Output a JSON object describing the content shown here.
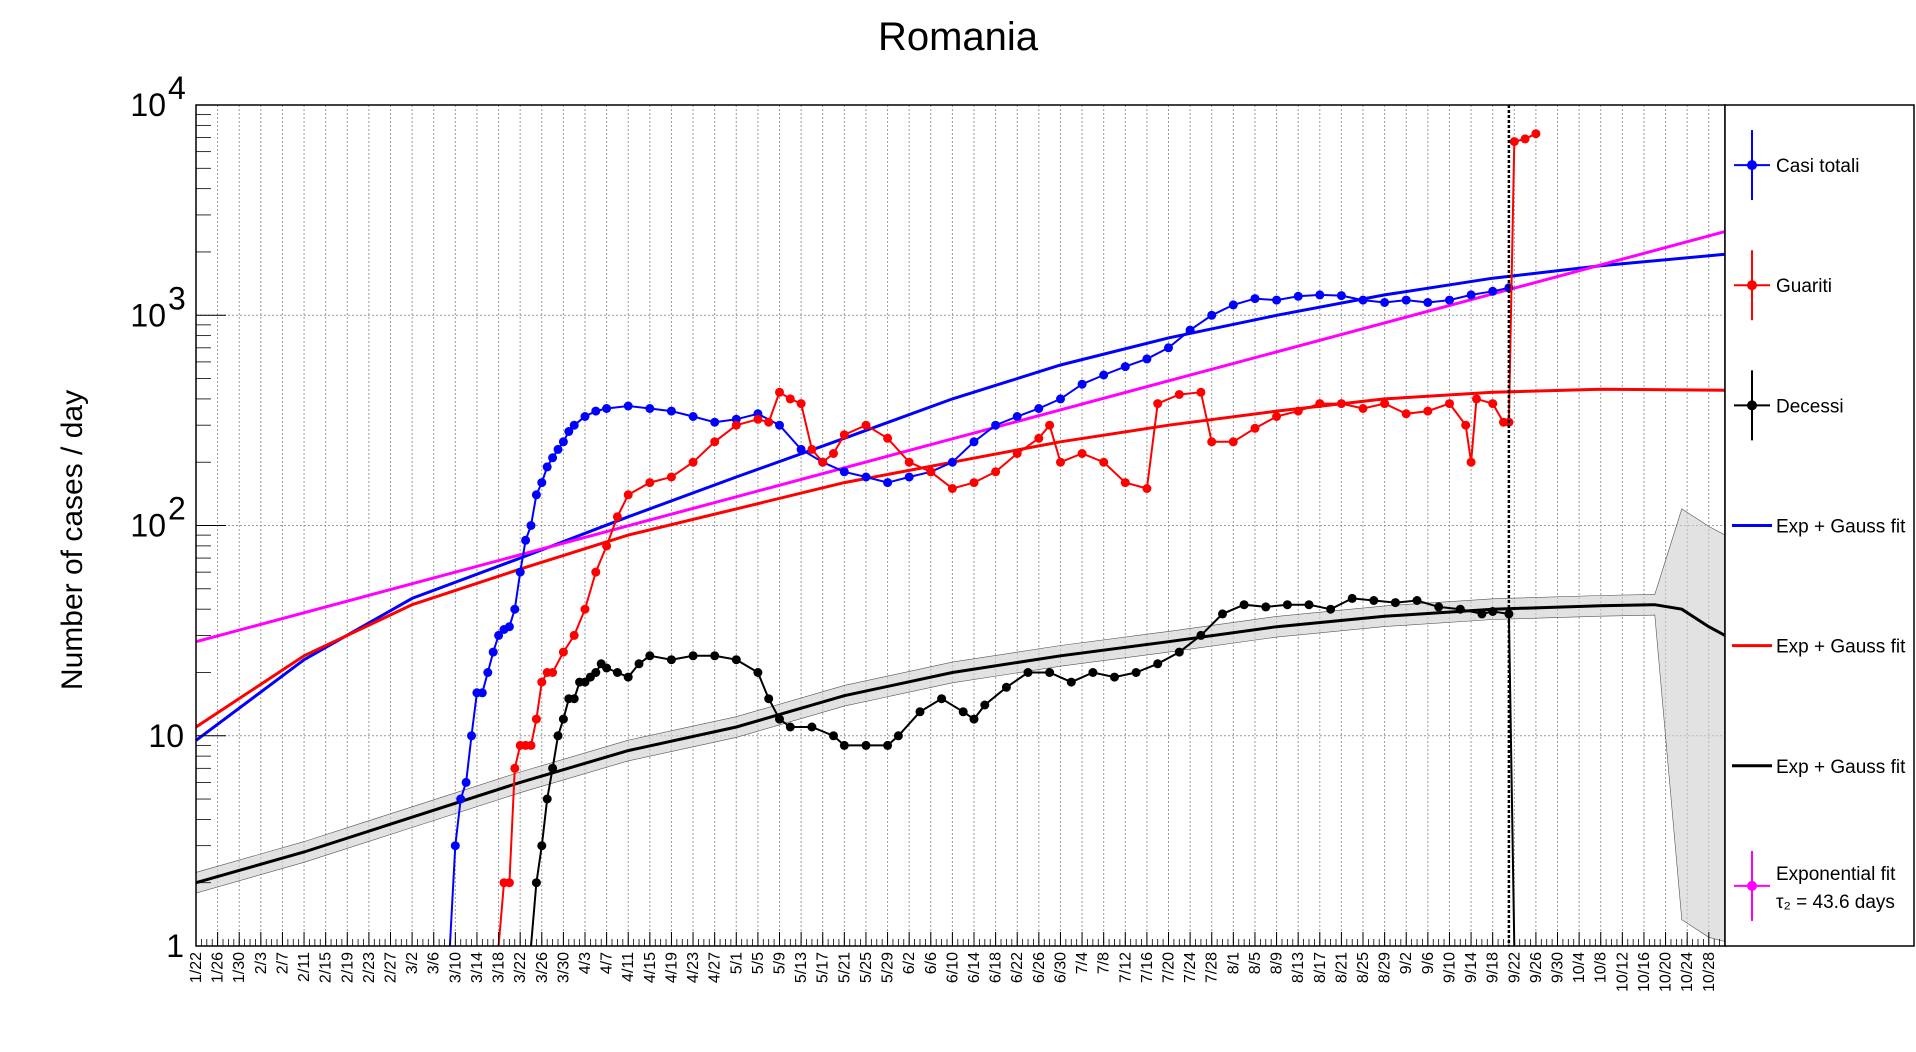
{
  "chart_data": {
    "type": "line",
    "title": "Romania",
    "xlabel": "",
    "ylabel": "Number of cases / day",
    "yscale": "log",
    "ylim": [
      1,
      10000
    ],
    "y_ticks": [
      {
        "value": 1,
        "label": "1"
      },
      {
        "value": 10,
        "label": "10"
      },
      {
        "value": 100,
        "label": "10",
        "exp": "2"
      },
      {
        "value": 1000,
        "label": "10",
        "exp": "3"
      },
      {
        "value": 10000,
        "label": "10",
        "exp": "4"
      }
    ],
    "x_tick_labels": [
      "1/22",
      "1/26",
      "1/30",
      "2/3",
      "2/7",
      "2/11",
      "2/15",
      "2/19",
      "2/23",
      "2/27",
      "3/2",
      "3/6",
      "3/10",
      "3/14",
      "3/18",
      "3/22",
      "3/26",
      "3/30",
      "4/3",
      "4/7",
      "4/11",
      "4/15",
      "4/19",
      "4/23",
      "4/27",
      "5/1",
      "5/5",
      "5/9",
      "5/13",
      "5/17",
      "5/21",
      "5/25",
      "5/29",
      "6/2",
      "6/6",
      "6/10",
      "6/14",
      "6/18",
      "6/22",
      "6/26",
      "6/30",
      "7/4",
      "7/8",
      "7/12",
      "7/16",
      "7/20",
      "7/24",
      "7/28",
      "8/1",
      "8/5",
      "8/9",
      "8/13",
      "8/17",
      "8/21",
      "8/25",
      "8/29",
      "9/2",
      "9/6",
      "9/10",
      "9/14",
      "9/18",
      "9/22",
      "9/26",
      "9/30",
      "10/4",
      "10/8",
      "10/12",
      "10/16",
      "10/20",
      "10/24",
      "10/28"
    ],
    "xlim_days": [
      0,
      283
    ],
    "grid": true,
    "current_day_marker": 243,
    "legend_position": "right",
    "legend": [
      {
        "label": "Casi totali",
        "color": "#0000ff",
        "style": "marker"
      },
      {
        "label": "Guariti",
        "color": "#ff0000",
        "style": "marker"
      },
      {
        "label": "Decessi",
        "color": "#000000",
        "style": "marker"
      },
      {
        "label": "Exp + Gauss fit",
        "color": "#0000ff",
        "style": "line"
      },
      {
        "label": "Exp + Gauss fit",
        "color": "#ff0000",
        "style": "line"
      },
      {
        "label": "Exp + Gauss fit",
        "color": "#000000",
        "style": "line"
      },
      {
        "label": "Exponential fit",
        "label2": "τ₂ = 43.6 days",
        "color": "#ff00ff",
        "style": "marker"
      }
    ],
    "series": [
      {
        "name": "Casi totali",
        "color": "#0000ff",
        "kind": "data",
        "points": [
          [
            47,
            1
          ],
          [
            48,
            3
          ],
          [
            49,
            5
          ],
          [
            50,
            6
          ],
          [
            51,
            10
          ],
          [
            52,
            16
          ],
          [
            53,
            16
          ],
          [
            54,
            20
          ],
          [
            55,
            25
          ],
          [
            56,
            30
          ],
          [
            57,
            32
          ],
          [
            58,
            33
          ],
          [
            59,
            40
          ],
          [
            60,
            60
          ],
          [
            61,
            85
          ],
          [
            62,
            100
          ],
          [
            63,
            140
          ],
          [
            64,
            160
          ],
          [
            65,
            190
          ],
          [
            66,
            210
          ],
          [
            67,
            230
          ],
          [
            68,
            250
          ],
          [
            69,
            280
          ],
          [
            70,
            300
          ],
          [
            72,
            330
          ],
          [
            74,
            350
          ],
          [
            76,
            360
          ],
          [
            80,
            370
          ],
          [
            84,
            360
          ],
          [
            88,
            350
          ],
          [
            92,
            330
          ],
          [
            96,
            310
          ],
          [
            100,
            320
          ],
          [
            104,
            340
          ],
          [
            108,
            300
          ],
          [
            112,
            230
          ],
          [
            116,
            200
          ],
          [
            120,
            180
          ],
          [
            124,
            170
          ],
          [
            128,
            160
          ],
          [
            132,
            170
          ],
          [
            136,
            180
          ],
          [
            140,
            200
          ],
          [
            144,
            250
          ],
          [
            148,
            300
          ],
          [
            152,
            330
          ],
          [
            156,
            360
          ],
          [
            160,
            400
          ],
          [
            164,
            470
          ],
          [
            168,
            520
          ],
          [
            172,
            570
          ],
          [
            176,
            620
          ],
          [
            180,
            700
          ],
          [
            184,
            850
          ],
          [
            188,
            1000
          ],
          [
            192,
            1120
          ],
          [
            196,
            1200
          ],
          [
            200,
            1180
          ],
          [
            204,
            1230
          ],
          [
            208,
            1250
          ],
          [
            212,
            1240
          ],
          [
            216,
            1180
          ],
          [
            220,
            1150
          ],
          [
            224,
            1180
          ],
          [
            228,
            1150
          ],
          [
            232,
            1180
          ],
          [
            236,
            1250
          ],
          [
            240,
            1300
          ],
          [
            243,
            1350
          ]
        ]
      },
      {
        "name": "Guariti",
        "color": "#ff0000",
        "kind": "data",
        "points": [
          [
            56,
            1
          ],
          [
            57,
            2
          ],
          [
            58,
            2
          ],
          [
            59,
            7
          ],
          [
            60,
            9
          ],
          [
            61,
            9
          ],
          [
            62,
            9
          ],
          [
            63,
            12
          ],
          [
            64,
            18
          ],
          [
            65,
            20
          ],
          [
            66,
            20
          ],
          [
            68,
            25
          ],
          [
            70,
            30
          ],
          [
            72,
            40
          ],
          [
            74,
            60
          ],
          [
            76,
            80
          ],
          [
            78,
            110
          ],
          [
            80,
            140
          ],
          [
            84,
            160
          ],
          [
            88,
            170
          ],
          [
            92,
            200
          ],
          [
            96,
            250
          ],
          [
            100,
            300
          ],
          [
            104,
            320
          ],
          [
            106,
            310
          ],
          [
            108,
            430
          ],
          [
            110,
            400
          ],
          [
            112,
            380
          ],
          [
            114,
            230
          ],
          [
            116,
            200
          ],
          [
            118,
            220
          ],
          [
            120,
            270
          ],
          [
            124,
            300
          ],
          [
            128,
            260
          ],
          [
            132,
            200
          ],
          [
            136,
            180
          ],
          [
            140,
            150
          ],
          [
            144,
            160
          ],
          [
            148,
            180
          ],
          [
            152,
            220
          ],
          [
            156,
            260
          ],
          [
            158,
            300
          ],
          [
            160,
            200
          ],
          [
            164,
            220
          ],
          [
            168,
            200
          ],
          [
            172,
            160
          ],
          [
            176,
            150
          ],
          [
            178,
            380
          ],
          [
            182,
            420
          ],
          [
            186,
            430
          ],
          [
            188,
            250
          ],
          [
            192,
            250
          ],
          [
            196,
            290
          ],
          [
            200,
            330
          ],
          [
            204,
            350
          ],
          [
            208,
            380
          ],
          [
            212,
            380
          ],
          [
            216,
            360
          ],
          [
            220,
            380
          ],
          [
            224,
            340
          ],
          [
            228,
            350
          ],
          [
            232,
            380
          ],
          [
            235,
            300
          ],
          [
            236,
            200
          ],
          [
            237,
            400
          ],
          [
            240,
            380
          ],
          [
            242,
            310
          ],
          [
            243,
            310
          ],
          [
            244,
            6700
          ],
          [
            246,
            6900
          ],
          [
            248,
            7300
          ]
        ]
      },
      {
        "name": "Decessi",
        "color": "#000000",
        "kind": "data",
        "points": [
          [
            62,
            1
          ],
          [
            63,
            2
          ],
          [
            64,
            3
          ],
          [
            65,
            5
          ],
          [
            66,
            7
          ],
          [
            67,
            10
          ],
          [
            68,
            12
          ],
          [
            69,
            15
          ],
          [
            70,
            15
          ],
          [
            71,
            18
          ],
          [
            72,
            18
          ],
          [
            73,
            19
          ],
          [
            74,
            20
          ],
          [
            75,
            22
          ],
          [
            76,
            21
          ],
          [
            78,
            20
          ],
          [
            80,
            19
          ],
          [
            82,
            22
          ],
          [
            84,
            24
          ],
          [
            88,
            23
          ],
          [
            92,
            24
          ],
          [
            96,
            24
          ],
          [
            100,
            23
          ],
          [
            104,
            20
          ],
          [
            106,
            15
          ],
          [
            108,
            12
          ],
          [
            110,
            11
          ],
          [
            114,
            11
          ],
          [
            118,
            10
          ],
          [
            120,
            9
          ],
          [
            124,
            9
          ],
          [
            128,
            9
          ],
          [
            130,
            10
          ],
          [
            134,
            13
          ],
          [
            138,
            15
          ],
          [
            142,
            13
          ],
          [
            144,
            12
          ],
          [
            146,
            14
          ],
          [
            150,
            17
          ],
          [
            154,
            20
          ],
          [
            158,
            20
          ],
          [
            162,
            18
          ],
          [
            166,
            20
          ],
          [
            170,
            19
          ],
          [
            174,
            20
          ],
          [
            178,
            22
          ],
          [
            182,
            25
          ],
          [
            186,
            30
          ],
          [
            190,
            38
          ],
          [
            194,
            42
          ],
          [
            198,
            41
          ],
          [
            202,
            42
          ],
          [
            206,
            42
          ],
          [
            210,
            40
          ],
          [
            214,
            45
          ],
          [
            218,
            44
          ],
          [
            222,
            43
          ],
          [
            226,
            44
          ],
          [
            230,
            41
          ],
          [
            234,
            40
          ],
          [
            238,
            38
          ],
          [
            240,
            39
          ],
          [
            243,
            38
          ],
          [
            244,
            1
          ]
        ]
      },
      {
        "name": "Exp + Gauss fit",
        "color": "#0000ff",
        "kind": "fit",
        "points": [
          [
            0,
            9.5
          ],
          [
            20,
            23
          ],
          [
            40,
            45
          ],
          [
            60,
            70
          ],
          [
            80,
            110
          ],
          [
            100,
            170
          ],
          [
            120,
            260
          ],
          [
            140,
            400
          ],
          [
            160,
            580
          ],
          [
            180,
            780
          ],
          [
            200,
            1000
          ],
          [
            220,
            1250
          ],
          [
            240,
            1500
          ],
          [
            260,
            1720
          ],
          [
            283,
            1950
          ]
        ]
      },
      {
        "name": "Exp + Gauss fit",
        "color": "#ff0000",
        "kind": "fit",
        "points": [
          [
            0,
            11
          ],
          [
            20,
            24
          ],
          [
            40,
            42
          ],
          [
            60,
            62
          ],
          [
            80,
            90
          ],
          [
            100,
            120
          ],
          [
            120,
            160
          ],
          [
            140,
            200
          ],
          [
            160,
            250
          ],
          [
            180,
            300
          ],
          [
            200,
            350
          ],
          [
            220,
            400
          ],
          [
            240,
            430
          ],
          [
            260,
            445
          ],
          [
            283,
            440
          ]
        ]
      },
      {
        "name": "Exp + Gauss fit",
        "color": "#000000",
        "kind": "fit",
        "points": [
          [
            0,
            2
          ],
          [
            20,
            2.8
          ],
          [
            40,
            4.1
          ],
          [
            60,
            6
          ],
          [
            80,
            8.5
          ],
          [
            100,
            11
          ],
          [
            120,
            15.5
          ],
          [
            140,
            20
          ],
          [
            160,
            24
          ],
          [
            180,
            28
          ],
          [
            200,
            33
          ],
          [
            220,
            37
          ],
          [
            240,
            40
          ],
          [
            260,
            41.5
          ],
          [
            270,
            42
          ],
          [
            275,
            40
          ],
          [
            280,
            33
          ],
          [
            283,
            30
          ]
        ]
      },
      {
        "name": "Exponential fit",
        "color": "#ff00ff",
        "kind": "fit",
        "points": [
          [
            0,
            28
          ],
          [
            283,
            2500
          ]
        ]
      }
    ]
  }
}
